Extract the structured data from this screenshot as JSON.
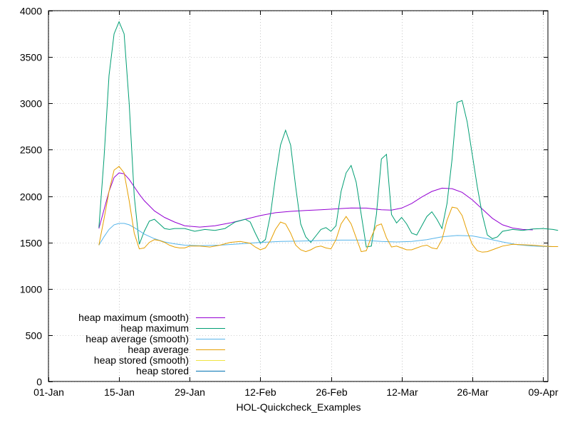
{
  "chart_data": {
    "type": "line",
    "title": "",
    "xlabel": "HOL-Quickcheck_Examples",
    "ylabel": "",
    "xlim": [
      "2012-01-01",
      "2012-04-09"
    ],
    "ylim": [
      0,
      4000
    ],
    "x_ticks": [
      "01-Jan",
      "15-Jan",
      "29-Jan",
      "12-Feb",
      "26-Feb",
      "12-Mar",
      "26-Mar",
      "09-Apr"
    ],
    "y_ticks": [
      0,
      500,
      1000,
      1500,
      2000,
      2500,
      3000,
      3500,
      4000
    ],
    "legend_position": "bottom-left",
    "series": [
      {
        "name": "heap maximum (smooth)",
        "color": "#9400d3",
        "points": [
          [
            "2012-01-11",
            1650
          ],
          [
            "2012-01-12",
            1850
          ],
          [
            "2012-01-13",
            2050
          ],
          [
            "2012-01-14",
            2200
          ],
          [
            "2012-01-15",
            2250
          ],
          [
            "2012-01-16",
            2240
          ],
          [
            "2012-01-17",
            2180
          ],
          [
            "2012-01-18",
            2100
          ],
          [
            "2012-01-19",
            2020
          ],
          [
            "2012-01-20",
            1950
          ],
          [
            "2012-01-22",
            1840
          ],
          [
            "2012-01-24",
            1770
          ],
          [
            "2012-01-26",
            1720
          ],
          [
            "2012-01-28",
            1680
          ],
          [
            "2012-01-31",
            1665
          ],
          [
            "2012-02-03",
            1680
          ],
          [
            "2012-02-06",
            1710
          ],
          [
            "2012-02-09",
            1750
          ],
          [
            "2012-02-12",
            1790
          ],
          [
            "2012-02-15",
            1820
          ],
          [
            "2012-02-18",
            1835
          ],
          [
            "2012-02-21",
            1845
          ],
          [
            "2012-02-24",
            1852
          ],
          [
            "2012-02-27",
            1862
          ],
          [
            "2012-03-01",
            1872
          ],
          [
            "2012-03-04",
            1870
          ],
          [
            "2012-03-07",
            1852
          ],
          [
            "2012-03-09",
            1848
          ],
          [
            "2012-03-11",
            1870
          ],
          [
            "2012-03-13",
            1920
          ],
          [
            "2012-03-15",
            1990
          ],
          [
            "2012-03-17",
            2050
          ],
          [
            "2012-03-19",
            2085
          ],
          [
            "2012-03-21",
            2080
          ],
          [
            "2012-03-23",
            2040
          ],
          [
            "2012-03-25",
            1960
          ],
          [
            "2012-03-27",
            1860
          ],
          [
            "2012-03-29",
            1760
          ],
          [
            "2012-03-31",
            1690
          ],
          [
            "2012-04-02",
            1655
          ],
          [
            "2012-04-04",
            1640
          ],
          [
            "2012-04-06",
            1635
          ]
        ]
      },
      {
        "name": "heap maximum",
        "color": "#009e73",
        "points": [
          [
            "2012-01-11",
            1660
          ],
          [
            "2012-01-12",
            2400
          ],
          [
            "2012-01-13",
            3300
          ],
          [
            "2012-01-14",
            3750
          ],
          [
            "2012-01-15",
            3880
          ],
          [
            "2012-01-16",
            3750
          ],
          [
            "2012-01-17",
            3000
          ],
          [
            "2012-01-18",
            2000
          ],
          [
            "2012-01-19",
            1480
          ],
          [
            "2012-01-20",
            1620
          ],
          [
            "2012-01-21",
            1730
          ],
          [
            "2012-01-22",
            1750
          ],
          [
            "2012-01-23",
            1700
          ],
          [
            "2012-01-24",
            1650
          ],
          [
            "2012-01-25",
            1640
          ],
          [
            "2012-01-26",
            1650
          ],
          [
            "2012-01-28",
            1650
          ],
          [
            "2012-01-30",
            1620
          ],
          [
            "2012-02-01",
            1640
          ],
          [
            "2012-02-03",
            1630
          ],
          [
            "2012-02-05",
            1650
          ],
          [
            "2012-02-07",
            1720
          ],
          [
            "2012-02-09",
            1750
          ],
          [
            "2012-02-10",
            1720
          ],
          [
            "2012-02-11",
            1600
          ],
          [
            "2012-02-12",
            1490
          ],
          [
            "2012-02-13",
            1530
          ],
          [
            "2012-02-14",
            1800
          ],
          [
            "2012-02-15",
            2200
          ],
          [
            "2012-02-16",
            2550
          ],
          [
            "2012-02-17",
            2710
          ],
          [
            "2012-02-18",
            2550
          ],
          [
            "2012-02-19",
            2100
          ],
          [
            "2012-02-20",
            1700
          ],
          [
            "2012-02-21",
            1560
          ],
          [
            "2012-02-22",
            1500
          ],
          [
            "2012-02-23",
            1570
          ],
          [
            "2012-02-24",
            1640
          ],
          [
            "2012-02-25",
            1660
          ],
          [
            "2012-02-26",
            1620
          ],
          [
            "2012-02-27",
            1680
          ],
          [
            "2012-02-28",
            2050
          ],
          [
            "2012-02-29",
            2250
          ],
          [
            "2012-03-01",
            2330
          ],
          [
            "2012-03-02",
            2150
          ],
          [
            "2012-03-03",
            1800
          ],
          [
            "2012-03-04",
            1450
          ],
          [
            "2012-03-05",
            1460
          ],
          [
            "2012-03-06",
            1800
          ],
          [
            "2012-03-07",
            2400
          ],
          [
            "2012-03-08",
            2450
          ],
          [
            "2012-03-09",
            1800
          ],
          [
            "2012-03-10",
            1710
          ],
          [
            "2012-03-11",
            1770
          ],
          [
            "2012-03-12",
            1700
          ],
          [
            "2012-03-13",
            1600
          ],
          [
            "2012-03-14",
            1580
          ],
          [
            "2012-03-15",
            1680
          ],
          [
            "2012-03-16",
            1780
          ],
          [
            "2012-03-17",
            1830
          ],
          [
            "2012-03-18",
            1750
          ],
          [
            "2012-03-19",
            1650
          ],
          [
            "2012-03-20",
            1920
          ],
          [
            "2012-03-21",
            2400
          ],
          [
            "2012-03-22",
            3010
          ],
          [
            "2012-03-23",
            3030
          ],
          [
            "2012-03-24",
            2800
          ],
          [
            "2012-03-25",
            2450
          ],
          [
            "2012-03-26",
            2100
          ],
          [
            "2012-03-27",
            1800
          ],
          [
            "2012-03-28",
            1580
          ],
          [
            "2012-03-29",
            1540
          ],
          [
            "2012-03-30",
            1560
          ],
          [
            "2012-03-31",
            1620
          ],
          [
            "2012-04-02",
            1640
          ],
          [
            "2012-04-04",
            1630
          ],
          [
            "2012-04-06",
            1645
          ],
          [
            "2012-04-08",
            1650
          ],
          [
            "2012-04-10",
            1640
          ],
          [
            "2012-04-11",
            1630
          ]
        ]
      },
      {
        "name": "heap average (smooth)",
        "color": "#56b4e9",
        "points": [
          [
            "2012-01-11",
            1470
          ],
          [
            "2012-01-12",
            1560
          ],
          [
            "2012-01-13",
            1640
          ],
          [
            "2012-01-14",
            1690
          ],
          [
            "2012-01-15",
            1705
          ],
          [
            "2012-01-16",
            1705
          ],
          [
            "2012-01-17",
            1690
          ],
          [
            "2012-01-18",
            1660
          ],
          [
            "2012-01-19",
            1625
          ],
          [
            "2012-01-20",
            1590
          ],
          [
            "2012-01-22",
            1540
          ],
          [
            "2012-01-24",
            1505
          ],
          [
            "2012-01-26",
            1485
          ],
          [
            "2012-01-28",
            1470
          ],
          [
            "2012-01-31",
            1465
          ],
          [
            "2012-02-04",
            1470
          ],
          [
            "2012-02-08",
            1485
          ],
          [
            "2012-02-12",
            1500
          ],
          [
            "2012-02-16",
            1510
          ],
          [
            "2012-02-20",
            1515
          ],
          [
            "2012-02-24",
            1520
          ],
          [
            "2012-02-28",
            1525
          ],
          [
            "2012-03-03",
            1525
          ],
          [
            "2012-03-07",
            1510
          ],
          [
            "2012-03-10",
            1505
          ],
          [
            "2012-03-13",
            1510
          ],
          [
            "2012-03-16",
            1530
          ],
          [
            "2012-03-19",
            1560
          ],
          [
            "2012-03-22",
            1575
          ],
          [
            "2012-03-25",
            1570
          ],
          [
            "2012-03-28",
            1540
          ],
          [
            "2012-03-31",
            1505
          ],
          [
            "2012-04-03",
            1475
          ],
          [
            "2012-04-06",
            1460
          ],
          [
            "2012-04-09",
            1455
          ],
          [
            "2012-04-11",
            1455
          ]
        ]
      },
      {
        "name": "heap average",
        "color": "#e69f00",
        "points": [
          [
            "2012-01-11",
            1470
          ],
          [
            "2012-01-12",
            1750
          ],
          [
            "2012-01-13",
            2050
          ],
          [
            "2012-01-14",
            2280
          ],
          [
            "2012-01-15",
            2320
          ],
          [
            "2012-01-16",
            2250
          ],
          [
            "2012-01-17",
            1950
          ],
          [
            "2012-01-18",
            1600
          ],
          [
            "2012-01-19",
            1430
          ],
          [
            "2012-01-20",
            1440
          ],
          [
            "2012-01-21",
            1500
          ],
          [
            "2012-01-22",
            1530
          ],
          [
            "2012-01-23",
            1520
          ],
          [
            "2012-01-24",
            1500
          ],
          [
            "2012-01-25",
            1470
          ],
          [
            "2012-01-26",
            1450
          ],
          [
            "2012-01-27",
            1440
          ],
          [
            "2012-01-28",
            1440
          ],
          [
            "2012-01-29",
            1460
          ],
          [
            "2012-01-31",
            1460
          ],
          [
            "2012-02-02",
            1450
          ],
          [
            "2012-02-04",
            1470
          ],
          [
            "2012-02-06",
            1500
          ],
          [
            "2012-02-08",
            1510
          ],
          [
            "2012-02-10",
            1490
          ],
          [
            "2012-02-11",
            1450
          ],
          [
            "2012-02-12",
            1420
          ],
          [
            "2012-02-13",
            1440
          ],
          [
            "2012-02-14",
            1520
          ],
          [
            "2012-02-15",
            1640
          ],
          [
            "2012-02-16",
            1720
          ],
          [
            "2012-02-17",
            1700
          ],
          [
            "2012-02-18",
            1600
          ],
          [
            "2012-02-19",
            1470
          ],
          [
            "2012-02-20",
            1420
          ],
          [
            "2012-02-21",
            1400
          ],
          [
            "2012-02-22",
            1420
          ],
          [
            "2012-02-23",
            1450
          ],
          [
            "2012-02-24",
            1460
          ],
          [
            "2012-02-25",
            1440
          ],
          [
            "2012-02-26",
            1430
          ],
          [
            "2012-02-27",
            1530
          ],
          [
            "2012-02-28",
            1700
          ],
          [
            "2012-02-29",
            1780
          ],
          [
            "2012-03-01",
            1700
          ],
          [
            "2012-03-02",
            1550
          ],
          [
            "2012-03-03",
            1400
          ],
          [
            "2012-03-04",
            1410
          ],
          [
            "2012-03-05",
            1560
          ],
          [
            "2012-03-06",
            1680
          ],
          [
            "2012-03-07",
            1700
          ],
          [
            "2012-03-08",
            1550
          ],
          [
            "2012-03-09",
            1450
          ],
          [
            "2012-03-10",
            1460
          ],
          [
            "2012-03-11",
            1440
          ],
          [
            "2012-03-12",
            1420
          ],
          [
            "2012-03-13",
            1420
          ],
          [
            "2012-03-14",
            1440
          ],
          [
            "2012-03-15",
            1460
          ],
          [
            "2012-03-16",
            1470
          ],
          [
            "2012-03-17",
            1440
          ],
          [
            "2012-03-18",
            1430
          ],
          [
            "2012-03-19",
            1530
          ],
          [
            "2012-03-20",
            1740
          ],
          [
            "2012-03-21",
            1880
          ],
          [
            "2012-03-22",
            1870
          ],
          [
            "2012-03-23",
            1790
          ],
          [
            "2012-03-24",
            1620
          ],
          [
            "2012-03-25",
            1480
          ],
          [
            "2012-03-26",
            1410
          ],
          [
            "2012-03-27",
            1395
          ],
          [
            "2012-03-28",
            1400
          ],
          [
            "2012-03-29",
            1420
          ],
          [
            "2012-03-30",
            1440
          ],
          [
            "2012-03-31",
            1460
          ],
          [
            "2012-04-02",
            1480
          ],
          [
            "2012-04-04",
            1475
          ],
          [
            "2012-04-06",
            1470
          ],
          [
            "2012-04-08",
            1460
          ],
          [
            "2012-04-10",
            1455
          ],
          [
            "2012-04-11",
            1455
          ]
        ]
      },
      {
        "name": "heap stored (smooth)",
        "color": "#f0e442",
        "points": []
      },
      {
        "name": "heap stored",
        "color": "#0072b2",
        "points": []
      }
    ]
  }
}
